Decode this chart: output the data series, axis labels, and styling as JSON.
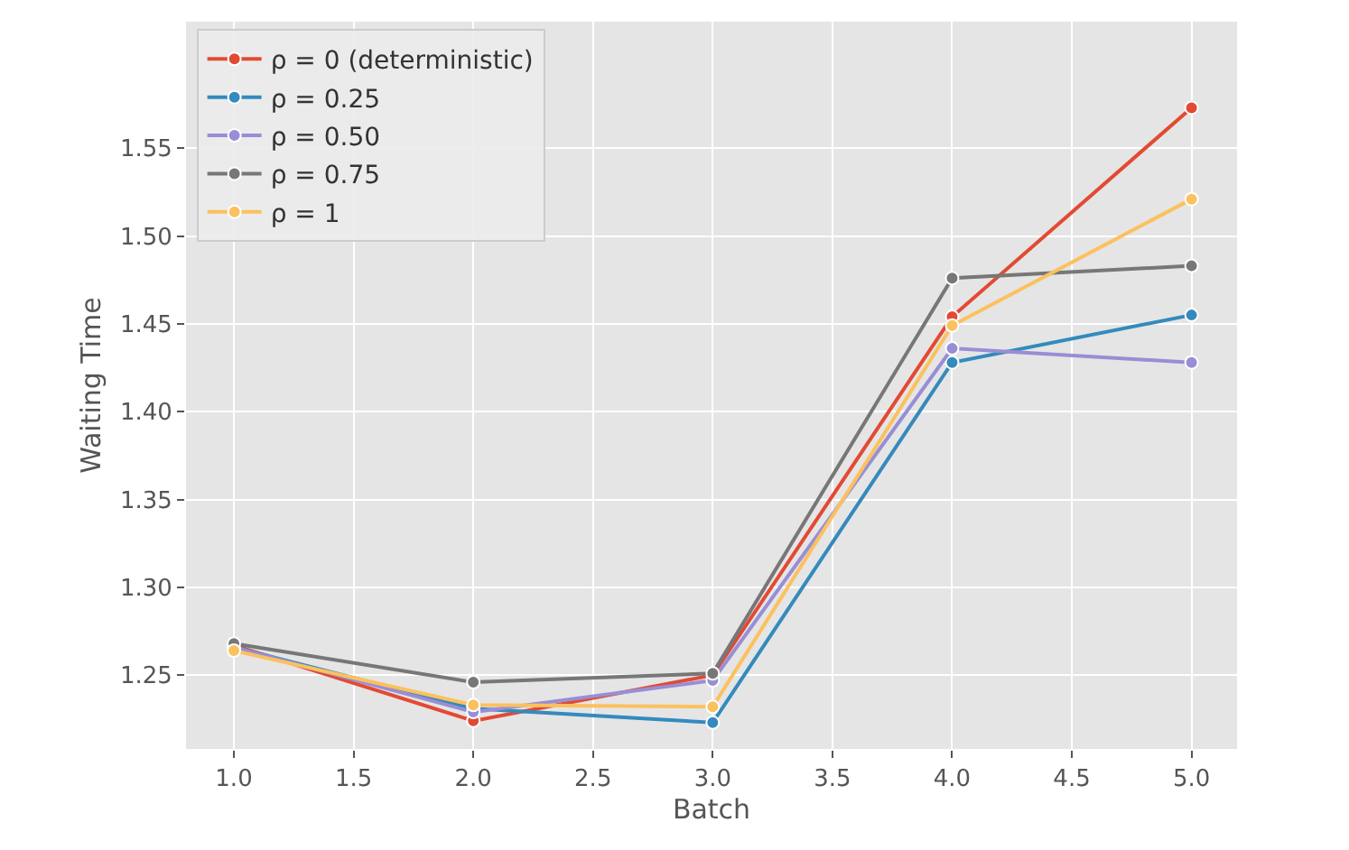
{
  "chart_data": {
    "type": "line",
    "xlabel": "Batch",
    "ylabel": "Waiting Time",
    "x": [
      1,
      2,
      3,
      4,
      5
    ],
    "series": [
      {
        "name": "ρ = 0 (deterministic)",
        "color": "#e24a33",
        "values": [
          1.267,
          1.224,
          1.25,
          1.454,
          1.573
        ]
      },
      {
        "name": "ρ = 0.25",
        "color": "#348abd",
        "values": [
          1.266,
          1.231,
          1.223,
          1.428,
          1.455
        ]
      },
      {
        "name": "ρ = 0.50",
        "color": "#988ed5",
        "values": [
          1.266,
          1.229,
          1.247,
          1.436,
          1.428
        ]
      },
      {
        "name": "ρ = 0.75",
        "color": "#777777",
        "values": [
          1.268,
          1.246,
          1.251,
          1.476,
          1.483
        ]
      },
      {
        "name": "ρ = 1",
        "color": "#fbc15e",
        "values": [
          1.264,
          1.233,
          1.232,
          1.449,
          1.521
        ]
      }
    ],
    "xlim": [
      0.8,
      5.19
    ],
    "ylim": [
      1.208,
      1.622
    ],
    "xticks": [
      {
        "value": 1,
        "label": "1.0"
      },
      {
        "value": 1.5,
        "label": "1.5"
      },
      {
        "value": 2,
        "label": "2.0"
      },
      {
        "value": 2.5,
        "label": "2.5"
      },
      {
        "value": 3,
        "label": "3.0"
      },
      {
        "value": 3.5,
        "label": "3.5"
      },
      {
        "value": 4,
        "label": "4.0"
      },
      {
        "value": 4.5,
        "label": "4.5"
      },
      {
        "value": 5,
        "label": "5.0"
      }
    ],
    "yticks": [
      {
        "value": 1.25,
        "label": "1.25"
      },
      {
        "value": 1.3,
        "label": "1.30"
      },
      {
        "value": 1.35,
        "label": "1.35"
      },
      {
        "value": 1.4,
        "label": "1.40"
      },
      {
        "value": 1.45,
        "label": "1.45"
      },
      {
        "value": 1.5,
        "label": "1.50"
      },
      {
        "value": 1.55,
        "label": "1.55"
      }
    ],
    "grid": true,
    "legend": "top left",
    "marker": "circle",
    "line_style": "solid"
  }
}
